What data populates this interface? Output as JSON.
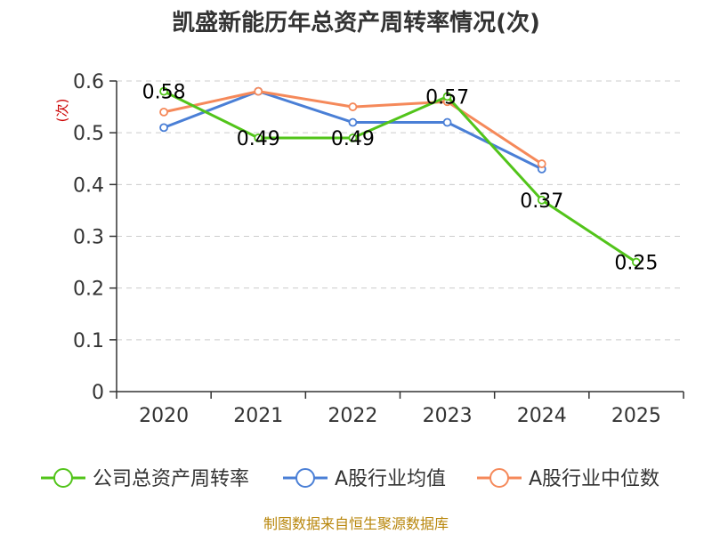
{
  "chart_data": {
    "type": "line",
    "title": "凯盛新能历年总资产周转率情况(次)",
    "ylabel": "(次)",
    "xlabel": "",
    "categories": [
      "2020",
      "2021",
      "2022",
      "2023",
      "2024",
      "2025"
    ],
    "ylim": [
      0,
      0.6
    ],
    "yticks": [
      "0",
      "0.1",
      "0.2",
      "0.3",
      "0.4",
      "0.5",
      "0.6"
    ],
    "grid": true,
    "legend_position": "bottom",
    "series": [
      {
        "name": "公司总资产周转率",
        "color": "#52c41a",
        "values": [
          0.58,
          0.49,
          0.49,
          0.57,
          0.37,
          0.25
        ],
        "labels": [
          "0.58",
          "0.49",
          "0.49",
          "0.57",
          "0.37",
          "0.25"
        ]
      },
      {
        "name": "A股行业均值",
        "color": "#4a7fd6",
        "values": [
          0.51,
          0.58,
          0.52,
          0.52,
          0.43,
          null
        ]
      },
      {
        "name": "A股行业中位数",
        "color": "#f5895a",
        "values": [
          0.54,
          0.58,
          0.55,
          0.56,
          0.44,
          null
        ]
      }
    ]
  },
  "source_text": "制图数据来自恒生聚源数据库"
}
